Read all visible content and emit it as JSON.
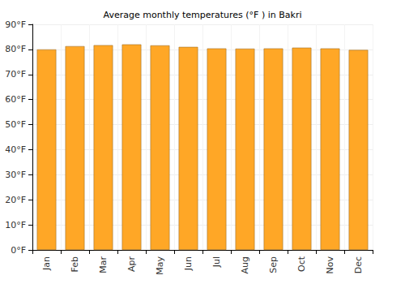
{
  "chart_data": {
    "type": "bar",
    "title": "Average monthly temperatures (°F ) in Bakri",
    "categories": [
      "Jan",
      "Feb",
      "Mar",
      "Apr",
      "May",
      "Jun",
      "Jul",
      "Aug",
      "Sep",
      "Oct",
      "Nov",
      "Dec"
    ],
    "values": [
      80.0,
      81.3,
      81.7,
      82.0,
      81.6,
      81.0,
      80.4,
      80.3,
      80.4,
      80.7,
      80.4,
      79.8
    ],
    "color": "#ffa726",
    "ylim": [
      0,
      90
    ],
    "yticks": [
      {
        "value": 0,
        "label": "0°F"
      },
      {
        "value": 10,
        "label": "10°F"
      },
      {
        "value": 20,
        "label": "20°F"
      },
      {
        "value": 30,
        "label": "30°F"
      },
      {
        "value": 40,
        "label": "40°F"
      },
      {
        "value": 50,
        "label": "50°F"
      },
      {
        "value": 60,
        "label": "60°F"
      },
      {
        "value": 70,
        "label": "70°F"
      },
      {
        "value": 80,
        "label": "80°F"
      },
      {
        "value": 90,
        "label": "90°F"
      }
    ],
    "grid": true
  }
}
